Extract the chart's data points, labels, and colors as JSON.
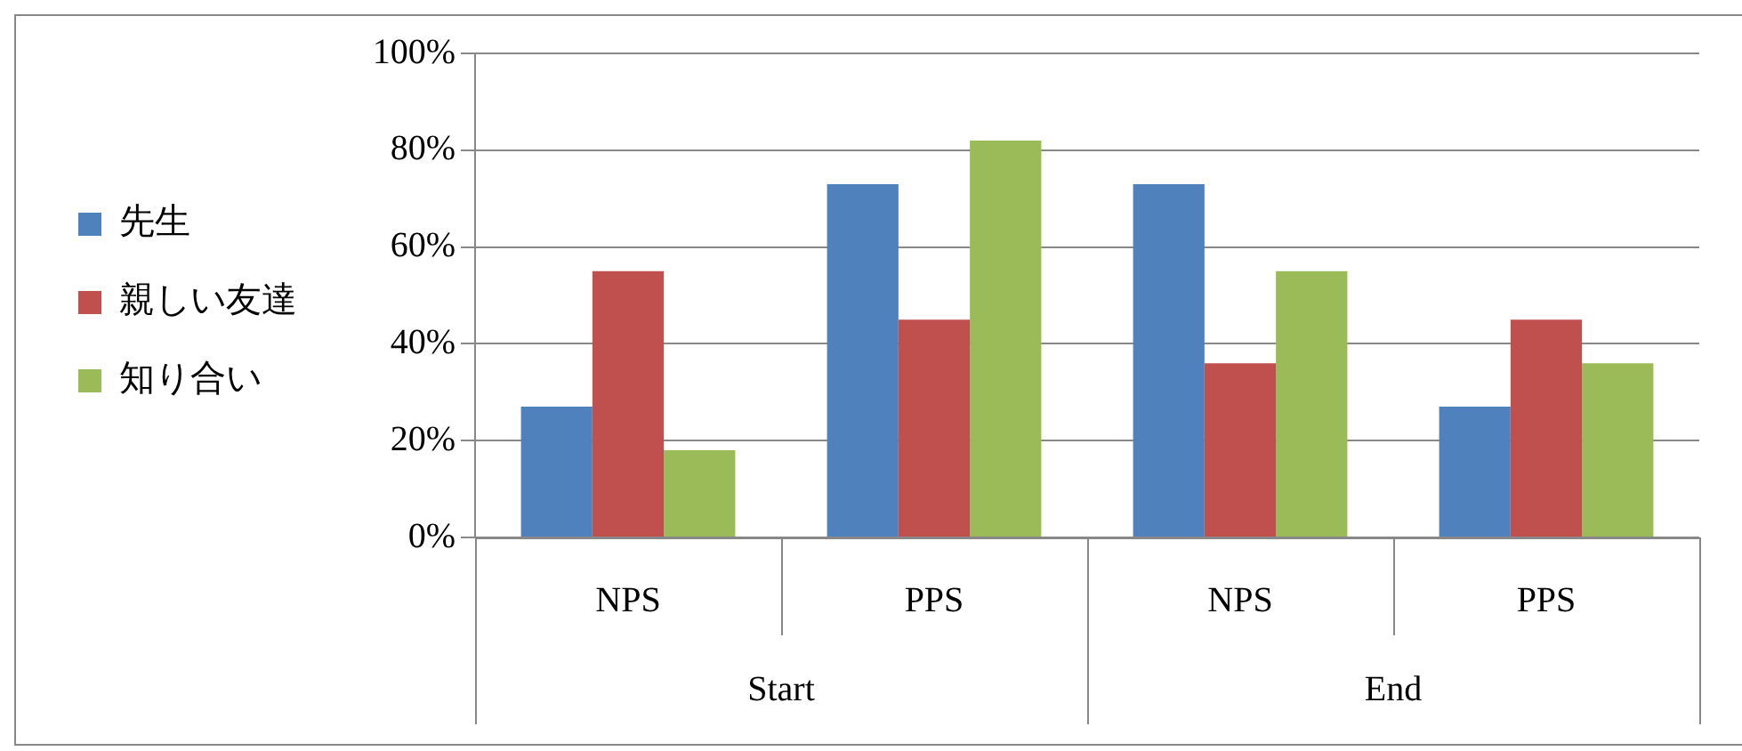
{
  "chart_data": {
    "type": "bar",
    "categories": [
      "NPS",
      "PPS",
      "NPS",
      "PPS"
    ],
    "series": [
      {
        "name": "先生",
        "color": "#4f81bd",
        "values": [
          27,
          73,
          73,
          27
        ]
      },
      {
        "name": "親しい友達",
        "color": "#c0504d",
        "values": [
          55,
          45,
          36,
          45
        ]
      },
      {
        "name": "知り合い",
        "color": "#9bbb59",
        "values": [
          18,
          82,
          55,
          36
        ]
      }
    ],
    "annotations": [
      "Start",
      "End"
    ],
    "ylim": [
      0,
      100
    ],
    "yticks": [
      {
        "value": 0,
        "label": "0%"
      },
      {
        "value": 20,
        "label": "20%"
      },
      {
        "value": 40,
        "label": "40%"
      },
      {
        "value": 60,
        "label": "60%"
      },
      {
        "value": 80,
        "label": "80%"
      },
      {
        "value": 100,
        "label": "100%"
      }
    ],
    "grid": "y",
    "legend": "left"
  }
}
